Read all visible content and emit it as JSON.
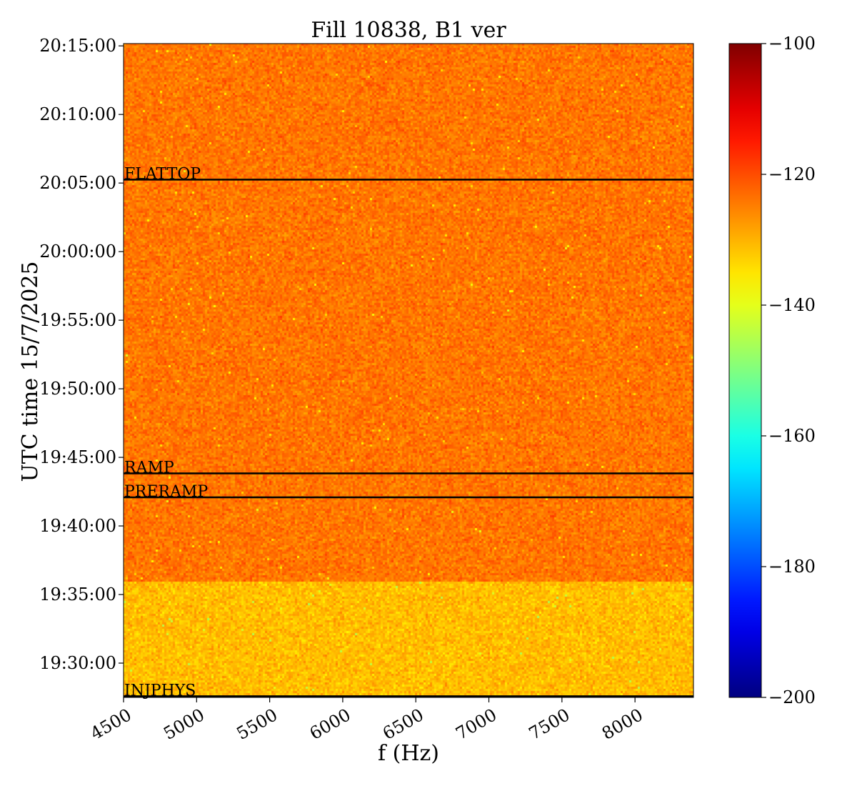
{
  "chart_data": {
    "type": "heatmap",
    "title": "Fill 10838, B1 ver",
    "xlabel": "f (Hz)",
    "ylabel": "UTC time 15/7/2025",
    "xlim": [
      4500,
      8400
    ],
    "ylim": [
      "19:27:30",
      "20:15:10"
    ],
    "x_ticks": [
      4500,
      5000,
      5500,
      6000,
      6500,
      7000,
      7500,
      8000
    ],
    "y_ticks": [
      "19:30:00",
      "19:35:00",
      "19:40:00",
      "19:45:00",
      "19:50:00",
      "19:55:00",
      "20:00:00",
      "20:05:00",
      "20:10:00",
      "20:15:00"
    ],
    "colorbar": {
      "colormap": "jet",
      "min": -200,
      "max": -100,
      "ticks": [
        -200,
        -180,
        -160,
        -140,
        -120,
        -100
      ]
    },
    "field_description": {
      "dominant_level": -124,
      "regions": [
        {
          "from": "19:27:30",
          "to": "19:36:00",
          "level": -131
        },
        {
          "from": "19:36:00",
          "to": "20:15:10",
          "level": -124
        }
      ]
    },
    "markers": [
      {
        "label": "INJPHYS",
        "time": "19:27:35"
      },
      {
        "label": "PRERAMP",
        "time": "19:42:05"
      },
      {
        "label": "RAMP",
        "time": "19:43:50"
      },
      {
        "label": "FLATTOP",
        "time": "20:05:15"
      }
    ]
  }
}
